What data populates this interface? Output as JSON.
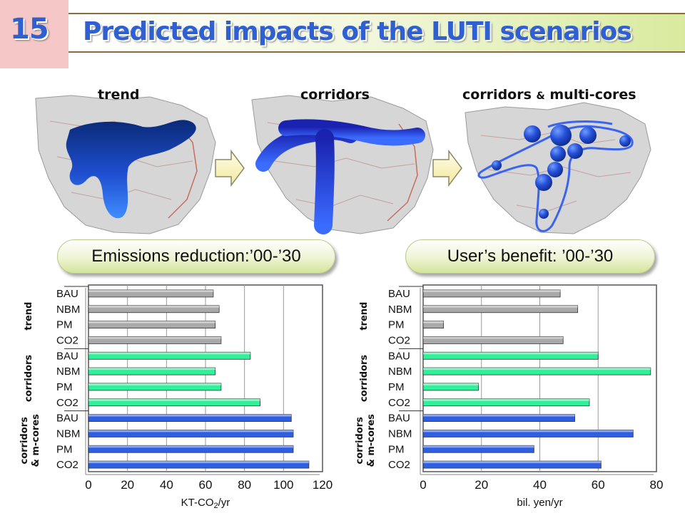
{
  "slide": {
    "number": "15",
    "title": "Predicted impacts of the LUTI scenarios"
  },
  "maps": [
    {
      "title": "trend",
      "icon": "city-map-blob"
    },
    {
      "title": "corridors",
      "icon": "city-map-corridors"
    },
    {
      "title_main": "corridors",
      "title_amp": "&",
      "title_rest": "multi-cores",
      "icon": "city-map-multicores"
    }
  ],
  "colors": {
    "title": "#2f5fd0",
    "trend_bar": "#a9a9a9",
    "corridors_bar": "#2ef29a",
    "multicores_bar": "#2f5fe0"
  },
  "chart_data": [
    {
      "type": "bar",
      "orientation": "horizontal",
      "title": "Emissions reduction:’00-’30",
      "xlabel": "KT-CO2/yr",
      "xlabel_main": "KT-CO",
      "xlabel_sub": "2",
      "xlabel_suffix": "/yr",
      "xlim": [
        0,
        120
      ],
      "xticks": [
        "0",
        "20",
        "40",
        "60",
        "80",
        "100",
        "120"
      ],
      "grid": "vertical",
      "groups": [
        {
          "label": "trend",
          "categories": [
            "BAU",
            "NBM",
            "PM",
            "CO2"
          ],
          "values": [
            64,
            67,
            65,
            68
          ]
        },
        {
          "label": "corridors",
          "categories": [
            "BAU",
            "NBM",
            "PM",
            "CO2"
          ],
          "values": [
            83,
            65,
            68,
            88
          ]
        },
        {
          "label_line1": "corridors",
          "label_line2": "& m-cores",
          "categories": [
            "BAU",
            "NBM",
            "PM",
            "CO2"
          ],
          "values": [
            104,
            105,
            105,
            113
          ]
        }
      ]
    },
    {
      "type": "bar",
      "orientation": "horizontal",
      "title": "User’s benefit: ’00-’30",
      "xlabel": "bil. yen/yr",
      "xlim": [
        0,
        80
      ],
      "xticks": [
        "0",
        "20",
        "40",
        "60",
        "80"
      ],
      "grid": "vertical",
      "groups": [
        {
          "label": "trend",
          "categories": [
            "BAU",
            "NBM",
            "PM",
            "CO2"
          ],
          "values": [
            47,
            53,
            7,
            48
          ]
        },
        {
          "label": "corridors",
          "categories": [
            "BAU",
            "NBM",
            "PM",
            "CO2"
          ],
          "values": [
            60,
            78,
            19,
            57
          ]
        },
        {
          "label_line1": "corridors",
          "label_line2": "& m-cores",
          "categories": [
            "BAU",
            "NBM",
            "PM",
            "CO2"
          ],
          "values": [
            52,
            72,
            38,
            61
          ]
        }
      ]
    }
  ]
}
